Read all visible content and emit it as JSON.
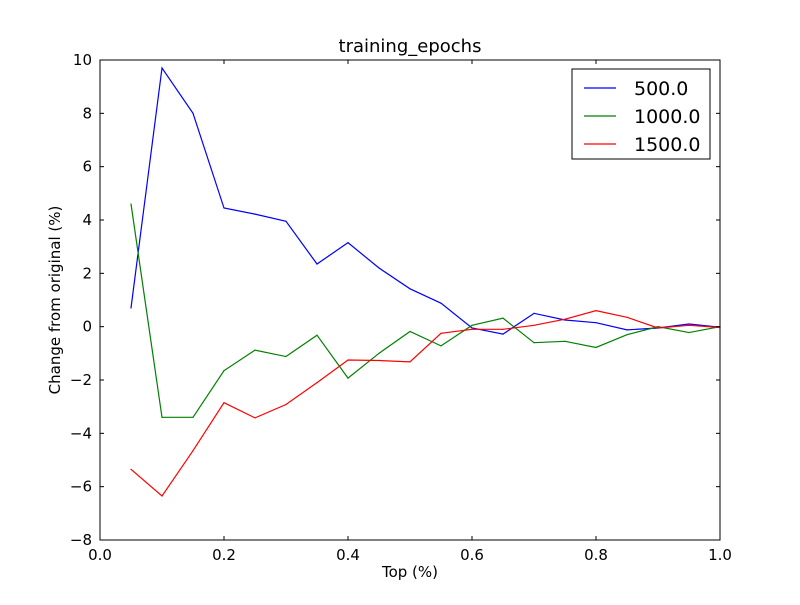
{
  "chart_data": {
    "type": "line",
    "title": "training_epochs",
    "xlabel": "Top (%)",
    "ylabel": "Change from original (%)",
    "xlim": [
      0.0,
      1.0
    ],
    "ylim": [
      -8,
      10
    ],
    "xticks": [
      "0.0",
      "0.2",
      "0.4",
      "0.6",
      "0.8",
      "1.0"
    ],
    "yticks": [
      "−8",
      "−6",
      "−4",
      "−2",
      "0",
      "2",
      "4",
      "6",
      "8",
      "10"
    ],
    "grid": false,
    "legend_position": "top-right",
    "x": [
      0.05,
      0.1,
      0.15,
      0.2,
      0.25,
      0.3,
      0.35,
      0.4,
      0.45,
      0.5,
      0.55,
      0.6,
      0.65,
      0.7,
      0.75,
      0.8,
      0.85,
      0.9,
      0.95,
      1.0
    ],
    "series": [
      {
        "name": "500.0",
        "color": "#0000ff",
        "values": [
          0.7,
          9.7,
          8.0,
          4.45,
          4.22,
          3.95,
          2.35,
          3.15,
          2.2,
          1.42,
          0.88,
          -0.05,
          -0.28,
          0.5,
          0.25,
          0.15,
          -0.12,
          -0.05,
          0.1,
          -0.02
        ]
      },
      {
        "name": "1000.0",
        "color": "#008000",
        "values": [
          4.6,
          -3.4,
          -3.4,
          -1.65,
          -0.88,
          -1.12,
          -0.32,
          -1.93,
          -1.0,
          -0.18,
          -0.72,
          0.05,
          0.32,
          -0.6,
          -0.55,
          -0.78,
          -0.3,
          0.0,
          -0.22,
          0.0
        ]
      },
      {
        "name": "1500.0",
        "color": "#ff0000",
        "values": [
          -5.35,
          -6.35,
          -4.65,
          -2.85,
          -3.42,
          -2.92,
          -2.1,
          -1.25,
          -1.27,
          -1.32,
          -0.25,
          -0.1,
          -0.1,
          0.05,
          0.28,
          0.6,
          0.35,
          -0.05,
          0.05,
          -0.03
        ]
      }
    ]
  }
}
